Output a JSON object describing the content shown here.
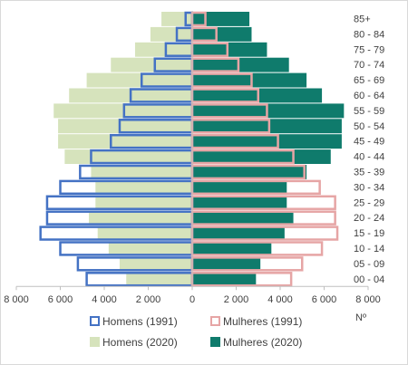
{
  "chart_data": {
    "type": "bar",
    "orientation": "horizontal-population-pyramid",
    "categories": [
      "00 - 04",
      "05 - 09",
      "10 - 14",
      "15 - 19",
      "20 - 24",
      "25 - 29",
      "30 - 34",
      "35 - 39",
      "40 - 44",
      "45 - 49",
      "50 - 54",
      "55 - 59",
      "60 - 64",
      "65 - 69",
      "70 - 74",
      "75 - 79",
      "80 - 84",
      "85+"
    ],
    "series": [
      {
        "name": "Homens (1991)",
        "side": "left",
        "style": "outline",
        "color": "#4472c4",
        "values": [
          4800,
          5200,
          6000,
          6900,
          6600,
          6600,
          6000,
          5100,
          4600,
          3700,
          3300,
          3100,
          2800,
          2300,
          1700,
          1200,
          700,
          300
        ]
      },
      {
        "name": "Mulheres (1991)",
        "side": "right",
        "style": "outline",
        "color": "#e6a5a5",
        "values": [
          4500,
          5000,
          5900,
          6600,
          6500,
          6500,
          5800,
          5100,
          4600,
          3900,
          3500,
          3400,
          3000,
          2700,
          2100,
          1600,
          1100,
          600
        ]
      },
      {
        "name": "Homens (2020)",
        "side": "left",
        "style": "fill",
        "color": "#d6e3bc",
        "values": [
          3000,
          3300,
          3800,
          4300,
          4700,
          4400,
          4400,
          4600,
          5800,
          6100,
          6100,
          6300,
          5600,
          4800,
          3700,
          2600,
          1900,
          1400
        ]
      },
      {
        "name": "Mulheres (2020)",
        "side": "right",
        "style": "fill",
        "color": "#0f7b6c",
        "values": [
          2900,
          3100,
          3600,
          4200,
          4600,
          4300,
          4300,
          5200,
          6300,
          6800,
          6800,
          6900,
          5900,
          5200,
          4400,
          3400,
          2700,
          2600
        ]
      }
    ],
    "xticks": [
      "8 000",
      "6 000",
      "4 000",
      "2 000",
      "0",
      "2 000",
      "4 000",
      "6 000",
      "8 000"
    ],
    "xlim": [
      -8000,
      8000
    ],
    "xlabel": "Nº",
    "ylabel": "",
    "title": "",
    "grid": false,
    "legend": "bottom"
  }
}
